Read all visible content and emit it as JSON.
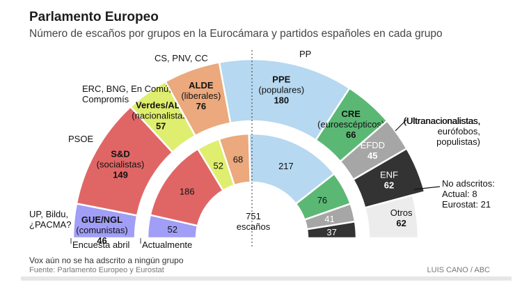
{
  "title": "Parlamento Europeo",
  "subtitle": "Número de escaños por grupos en la Eurocámara y partidos españoles en cada grupo",
  "footnote": "Vox aún no se ha adscrito a ningún grupo",
  "source": "Fuente: Parlamento Europeo y Eurostat",
  "credit": "LUIS CANO / ABC",
  "chart_data": [
    {
      "type": "pie",
      "subtype": "parliament-hemicycle",
      "title": "Encuesta abril",
      "groups": [
        {
          "name": "GUE/NGL",
          "desc": "comunistas",
          "value": 46,
          "color": "#a09ef6",
          "spanish_parties": "UP, Bildu, ¿PACMA?"
        },
        {
          "name": "S&D",
          "desc": "socialistas",
          "value": 149,
          "color": "#e06666",
          "spanish_parties": "PSOE"
        },
        {
          "name": "Verdes/ALE",
          "desc": "nacionalistas",
          "value": 57,
          "color": "#dfee6e",
          "spanish_parties": "ERC, BNG, En Comú, Compromís"
        },
        {
          "name": "ALDE",
          "desc": "liberales",
          "value": 76,
          "color": "#eba97d",
          "spanish_parties": "CS, PNV, CC"
        },
        {
          "name": "PPE",
          "desc": "populares",
          "value": 180,
          "color": "#b6d8f0",
          "spanish_parties": "PP"
        },
        {
          "name": "CRE",
          "desc": "euroescépticos",
          "value": 66,
          "color": "#5bb874",
          "spanish_parties": ""
        },
        {
          "name": "EFDD",
          "desc": "",
          "value": 45,
          "color": "#a6a6a6",
          "spanish_parties": "(Ultranacionalistas, eurófobos, populistas)"
        },
        {
          "name": "ENF",
          "desc": "",
          "value": 62,
          "color": "#333333",
          "spanish_parties": ""
        },
        {
          "name": "Otros",
          "desc": "",
          "value": 62,
          "color": "#ececec",
          "spanish_parties": ""
        }
      ],
      "otros_note": {
        "title": "No adscritos:",
        "actual": "Actual: 8",
        "eurostat": "Eurostat: 21"
      }
    },
    {
      "type": "pie",
      "subtype": "parliament-hemicycle",
      "title": "Actualmente",
      "total_label": "751",
      "total_unit": "escaños",
      "groups": [
        {
          "name": "GUE/NGL",
          "value": 52,
          "color": "#a09ef6"
        },
        {
          "name": "S&D",
          "value": 186,
          "color": "#e06666"
        },
        {
          "name": "Verdes/ALE",
          "value": 52,
          "color": "#dfee6e"
        },
        {
          "name": "ALDE",
          "value": 68,
          "color": "#eba97d"
        },
        {
          "name": "PPE",
          "value": 217,
          "color": "#b6d8f0"
        },
        {
          "name": "CRE",
          "value": 76,
          "color": "#5bb874"
        },
        {
          "name": "EFDD",
          "value": 41,
          "color": "#a6a6a6"
        },
        {
          "name": "ENF",
          "value": 37,
          "color": "#333333"
        }
      ]
    }
  ]
}
